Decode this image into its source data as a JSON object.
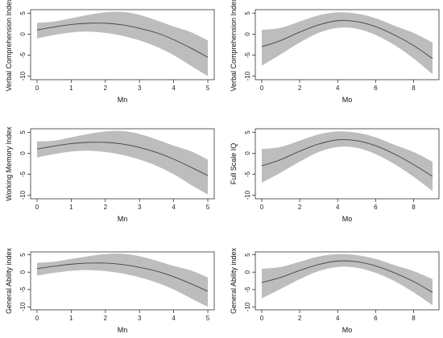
{
  "chart_data": [
    {
      "type": "area",
      "xlabel": "Mn",
      "ylabel": "Verbal Comprehension Index",
      "xlim": [
        0,
        5
      ],
      "ylim": [
        -10,
        5
      ],
      "xticks": [
        0,
        1,
        2,
        3,
        4,
        5
      ],
      "yticks": [
        -10,
        -5,
        0,
        5
      ],
      "grid": false,
      "series": [
        {
          "x": [
            0,
            0.5,
            1,
            1.5,
            2,
            2.5,
            3,
            3.5,
            4,
            4.5,
            5
          ],
          "fit": [
            1.0,
            1.7,
            2.3,
            2.6,
            2.6,
            2.2,
            1.4,
            0.3,
            -1.3,
            -3.3,
            -5.5
          ],
          "lower": [
            -1.0,
            -0.2,
            0.4,
            0.6,
            0.3,
            -0.4,
            -1.5,
            -3.0,
            -5.0,
            -7.5,
            -10.0
          ],
          "upper": [
            2.7,
            3.0,
            3.8,
            4.6,
            5.2,
            5.3,
            4.6,
            3.3,
            1.8,
            0.5,
            -1.5
          ]
        }
      ]
    },
    {
      "type": "area",
      "xlabel": "Mo",
      "ylabel": "Verbal Comprehension Index",
      "xlim": [
        0,
        9
      ],
      "ylim": [
        -10,
        5
      ],
      "xticks": [
        0,
        2,
        4,
        6,
        8
      ],
      "yticks": [
        -10,
        -5,
        0,
        5
      ],
      "grid": false,
      "series": [
        {
          "x": [
            0,
            1,
            2,
            3,
            4,
            5,
            6,
            7,
            8,
            9
          ],
          "fit": [
            -3.0,
            -1.5,
            0.5,
            2.2,
            3.2,
            3.0,
            1.8,
            -0.2,
            -2.7,
            -5.8
          ],
          "lower": [
            -7.5,
            -4.8,
            -2.0,
            0.3,
            1.5,
            1.3,
            -0.2,
            -2.6,
            -5.8,
            -9.5
          ],
          "upper": [
            1.0,
            1.5,
            3.0,
            4.5,
            5.2,
            4.9,
            3.8,
            2.0,
            0.3,
            -2.0
          ]
        }
      ]
    },
    {
      "type": "area",
      "xlabel": "Mn",
      "ylabel": "Working Memory Index",
      "xlim": [
        0,
        5
      ],
      "ylim": [
        -10,
        5
      ],
      "xticks": [
        0,
        1,
        2,
        3,
        4,
        5
      ],
      "yticks": [
        -10,
        -5,
        0,
        5
      ],
      "grid": false,
      "series": [
        {
          "x": [
            0,
            0.5,
            1,
            1.5,
            2,
            2.5,
            3,
            3.5,
            4,
            4.5,
            5
          ],
          "fit": [
            1.0,
            1.7,
            2.3,
            2.6,
            2.6,
            2.2,
            1.4,
            0.2,
            -1.4,
            -3.3,
            -5.3
          ],
          "lower": [
            -1.0,
            -0.2,
            0.4,
            0.6,
            0.3,
            -0.4,
            -1.5,
            -3.0,
            -5.0,
            -7.5,
            -9.8
          ],
          "upper": [
            2.8,
            3.0,
            3.8,
            4.6,
            5.2,
            5.3,
            4.6,
            3.3,
            1.8,
            0.5,
            -1.5
          ]
        }
      ]
    },
    {
      "type": "area",
      "xlabel": "Mo",
      "ylabel": "Full Scale IQ",
      "xlim": [
        0,
        9
      ],
      "ylim": [
        -10,
        5
      ],
      "xticks": [
        0,
        2,
        4,
        6,
        8
      ],
      "yticks": [
        -10,
        -5,
        0,
        5
      ],
      "grid": false,
      "series": [
        {
          "x": [
            0,
            1,
            2,
            3,
            4,
            5,
            6,
            7,
            8,
            9
          ],
          "fit": [
            -3.0,
            -1.5,
            0.5,
            2.2,
            3.2,
            3.0,
            1.8,
            -0.2,
            -2.7,
            -5.5
          ],
          "lower": [
            -7.0,
            -4.6,
            -2.0,
            0.3,
            1.5,
            1.3,
            -0.2,
            -2.6,
            -5.6,
            -9.0
          ],
          "upper": [
            1.0,
            1.5,
            3.0,
            4.5,
            5.2,
            4.9,
            3.8,
            2.0,
            0.3,
            -2.0
          ]
        }
      ]
    },
    {
      "type": "area",
      "xlabel": "Mn",
      "ylabel": "General Ability index",
      "xlim": [
        0,
        5
      ],
      "ylim": [
        -10,
        5
      ],
      "xticks": [
        0,
        1,
        2,
        3,
        4,
        5
      ],
      "yticks": [
        -10,
        -5,
        0,
        5
      ],
      "grid": false,
      "series": [
        {
          "x": [
            0,
            0.5,
            1,
            1.5,
            2,
            2.5,
            3,
            3.5,
            4,
            4.5,
            5
          ],
          "fit": [
            1.0,
            1.7,
            2.3,
            2.6,
            2.6,
            2.2,
            1.4,
            0.3,
            -1.3,
            -3.3,
            -5.5
          ],
          "lower": [
            -1.0,
            -0.2,
            0.4,
            0.6,
            0.3,
            -0.4,
            -1.5,
            -3.0,
            -5.0,
            -7.5,
            -10.0
          ],
          "upper": [
            2.7,
            3.0,
            3.8,
            4.6,
            5.2,
            5.3,
            4.6,
            3.3,
            1.8,
            0.5,
            -1.5
          ]
        }
      ]
    },
    {
      "type": "area",
      "xlabel": "Mo",
      "ylabel": "General Ability index",
      "xlim": [
        0,
        9
      ],
      "ylim": [
        -10,
        5
      ],
      "xticks": [
        0,
        2,
        4,
        6,
        8
      ],
      "yticks": [
        -10,
        -5,
        0,
        5
      ],
      "grid": false,
      "series": [
        {
          "x": [
            0,
            1,
            2,
            3,
            4,
            5,
            6,
            7,
            8,
            9
          ],
          "fit": [
            -3.0,
            -1.5,
            0.5,
            2.2,
            3.2,
            3.0,
            1.8,
            -0.2,
            -2.7,
            -5.8
          ],
          "lower": [
            -7.5,
            -4.8,
            -2.0,
            0.3,
            1.5,
            1.3,
            -0.2,
            -2.6,
            -5.8,
            -9.5
          ],
          "upper": [
            1.0,
            1.5,
            3.0,
            4.5,
            5.2,
            4.9,
            3.8,
            2.0,
            0.3,
            -2.0
          ]
        }
      ]
    }
  ],
  "style": {
    "band_color": "#bdbdbd",
    "line_color": "#444444",
    "axis_color": "#333333"
  }
}
